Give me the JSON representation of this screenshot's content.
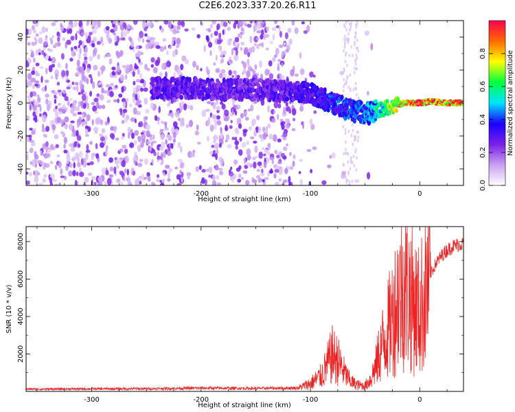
{
  "title": "C2E6.2023.337.20.26.R11",
  "chart_data": [
    {
      "type": "heatmap",
      "xlabel": "Height of straight line (km)",
      "ylabel": "Frequency (Hz)",
      "xlim": [
        -360,
        40
      ],
      "ylim": [
        -50,
        50
      ],
      "xticks": [
        -300,
        -200,
        -100,
        0
      ],
      "yticks": [
        -40,
        -20,
        0,
        20,
        40
      ],
      "colorbar": {
        "label": "Normalized spectral amplitude",
        "range": [
          0,
          1
        ],
        "ticks": [
          0.0,
          0.2,
          0.4,
          0.6,
          0.8
        ],
        "colors": [
          "#ffffff",
          "#c9a0f0",
          "#7a1fe8",
          "#1a00ff",
          "#00e5ff",
          "#00ff40",
          "#ffff00",
          "#ff6a00",
          "#ff0050"
        ]
      },
      "ridge": [
        {
          "x": -245,
          "y": 9,
          "amp": 0.3
        },
        {
          "x": -210,
          "y": 9,
          "amp": 0.3
        },
        {
          "x": -180,
          "y": 8,
          "amp": 0.28
        },
        {
          "x": -150,
          "y": 8,
          "amp": 0.28
        },
        {
          "x": -120,
          "y": 7,
          "amp": 0.3
        },
        {
          "x": -100,
          "y": 6,
          "amp": 0.33
        },
        {
          "x": -80,
          "y": 0,
          "amp": 0.38
        },
        {
          "x": -60,
          "y": -5,
          "amp": 0.4
        },
        {
          "x": -45,
          "y": -6,
          "amp": 0.45
        },
        {
          "x": -30,
          "y": -3,
          "amp": 0.6
        },
        {
          "x": -15,
          "y": 0,
          "amp": 0.8
        },
        {
          "x": 0,
          "y": 0,
          "amp": 0.9
        },
        {
          "x": 10,
          "y": 1,
          "amp": 0.9
        },
        {
          "x": 25,
          "y": 0,
          "amp": 0.9
        },
        {
          "x": 40,
          "y": 0,
          "amp": 0.85
        }
      ]
    },
    {
      "type": "line",
      "xlabel": "Height of straight line (km)",
      "ylabel": "SNR (10 * v/v)",
      "xlim": [
        -360,
        40
      ],
      "ylim": [
        0,
        8800
      ],
      "xticks": [
        -300,
        -200,
        -100,
        0
      ],
      "yticks": [
        2000,
        4000,
        6000,
        8000
      ],
      "color": "#ee2222",
      "series": [
        {
          "x": [
            -360,
            -300,
            -250,
            -200,
            -150,
            -110,
            -100,
            -90,
            -85,
            -80,
            -75,
            -70,
            -65,
            -60,
            -55,
            -50,
            -45,
            -40,
            -35,
            -30,
            -25,
            -20,
            -15,
            -10,
            -5,
            0,
            5,
            10,
            15,
            20,
            25,
            30,
            35,
            40
          ],
          "y": [
            150,
            170,
            180,
            220,
            200,
            230,
            450,
            900,
            1500,
            2100,
            1800,
            1200,
            700,
            450,
            350,
            320,
            700,
            1500,
            2600,
            3400,
            4300,
            5500,
            6000,
            5700,
            5000,
            4600,
            5800,
            6400,
            7000,
            7400,
            7700,
            7900,
            8000,
            8050
          ]
        }
      ]
    }
  ]
}
